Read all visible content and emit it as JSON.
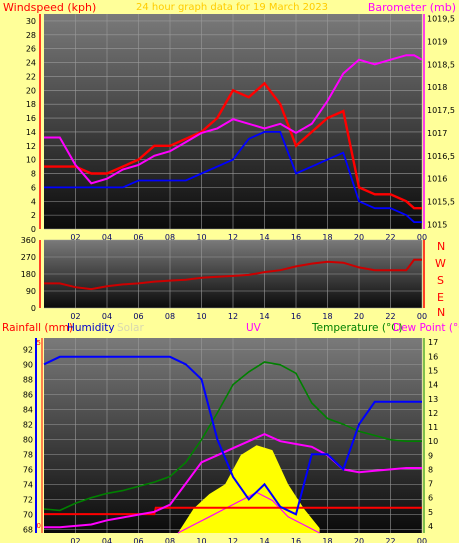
{
  "header": {
    "title": "24 hour graph data for 19 March 2023",
    "windspeed_label": "Windspeed (kph)",
    "barometer_label": "Barometer (mb)"
  },
  "compass": [
    "N",
    "W",
    "S",
    "E",
    "N"
  ],
  "bottom_labels": {
    "rainfall": "Rainfall (mm)",
    "humidity": "Humidity",
    "solar": "Solar",
    "uv": "UV",
    "temperature": "Temperature (°C)",
    "dewpoint": "Dew Point (°C)"
  },
  "colors": {
    "background": "#ffff99",
    "windspeed": "#ff0000",
    "gust": "#ff0000",
    "avg_wind": "#0000ff",
    "barometer": "#ff00ff",
    "direction": "#cc0000",
    "humidity": "#0000ff",
    "temperature": "#008000",
    "dewpoint": "#ff00ff",
    "solar": "#ffff00",
    "uv": "#ff00ff",
    "rain": "#ff0000"
  },
  "chart_data": [
    {
      "type": "line",
      "title": "24 hour graph data for 19 March 2023",
      "xlabel": "",
      "ylabel": "Windspeed (kph)",
      "y2label": "Barometer (mb)",
      "x_ticks": [
        "02",
        "04",
        "06",
        "08",
        "10",
        "12",
        "14",
        "16",
        "18",
        "20",
        "22",
        "00"
      ],
      "x_range_hours": [
        0,
        24
      ],
      "ylim": [
        0,
        31
      ],
      "y_ticks": [
        0,
        2,
        4,
        6,
        8,
        10,
        12,
        14,
        16,
        18,
        20,
        22,
        24,
        26,
        28,
        30
      ],
      "y2lim": [
        1014.9,
        1019.6
      ],
      "y2_ticks": [
        "1015",
        "1015,5",
        "1016",
        "1016,5",
        "1017",
        "1017,5",
        "1018",
        "1018,5",
        "1019",
        "1019,5"
      ],
      "grid": true,
      "series": [
        {
          "axis": "left",
          "x": [
            0,
            1,
            2,
            3,
            4,
            5,
            6,
            7,
            8,
            9,
            10,
            11,
            12,
            13,
            14,
            15,
            16,
            17,
            18,
            19,
            20,
            21,
            22,
            23,
            23.5,
            24
          ],
          "values": [
            9,
            9,
            9,
            8,
            8,
            9,
            10,
            12,
            12,
            13,
            14,
            16,
            20,
            19,
            21,
            18,
            12,
            14,
            16,
            17,
            6,
            5,
            5,
            4,
            3,
            3
          ]
        },
        {
          "axis": "left",
          "x": [
            0,
            1,
            2,
            3,
            4,
            5,
            6,
            7,
            8,
            9,
            10,
            11,
            12,
            13,
            14,
            15,
            16,
            17,
            18,
            19,
            20,
            21,
            22,
            23,
            23.5,
            24
          ],
          "values": [
            6,
            6,
            6,
            6,
            6,
            6,
            7,
            7,
            7,
            7,
            8,
            9,
            10,
            13,
            14,
            14,
            8,
            9,
            10,
            11,
            4,
            3,
            3,
            2,
            1,
            1
          ]
        },
        {
          "axis": "right",
          "x": [
            0,
            1,
            2,
            3,
            4,
            5,
            6,
            7,
            8,
            9,
            10,
            11,
            12,
            13,
            14,
            15,
            16,
            17,
            18,
            19,
            20,
            21,
            22,
            23,
            23.5,
            24
          ],
          "values": [
            1016.9,
            1016.9,
            1016.3,
            1015.9,
            1016.0,
            1016.2,
            1016.3,
            1016.5,
            1016.6,
            1016.8,
            1017.0,
            1017.1,
            1017.3,
            1017.2,
            1017.1,
            1017.2,
            1017.0,
            1017.2,
            1017.7,
            1018.3,
            1018.6,
            1018.5,
            1018.6,
            1018.7,
            1018.7,
            1018.6
          ]
        }
      ]
    },
    {
      "type": "line",
      "xlabel": "",
      "ylabel": "",
      "ylim": [
        0,
        360
      ],
      "y_ticks": [
        0,
        90,
        180,
        270,
        360
      ],
      "x_ticks": [
        "02",
        "04",
        "06",
        "08",
        "10",
        "12",
        "14",
        "16",
        "18",
        "20",
        "22",
        "00"
      ],
      "x_range_hours": [
        0,
        24
      ],
      "grid": true,
      "series": [
        {
          "x": [
            0,
            1,
            2,
            3,
            4,
            5,
            6,
            7,
            8,
            9,
            10,
            11,
            12,
            13,
            14,
            15,
            16,
            17,
            18,
            19,
            20,
            21,
            22,
            23,
            23.5,
            24
          ],
          "values": [
            130,
            130,
            110,
            100,
            115,
            125,
            130,
            140,
            145,
            150,
            160,
            165,
            170,
            175,
            190,
            200,
            220,
            235,
            245,
            240,
            215,
            200,
            200,
            200,
            255,
            255
          ]
        }
      ]
    },
    {
      "type": "line",
      "xlabel": "",
      "ylabel": "Humidity",
      "y2label": "Temperature (°C)",
      "x_ticks": [
        "02",
        "04",
        "06",
        "08",
        "10",
        "12",
        "14",
        "16",
        "18",
        "20",
        "22",
        "00"
      ],
      "x_range_hours": [
        0,
        24
      ],
      "ylim": [
        67.5,
        93.5
      ],
      "y_ticks": [
        68,
        70,
        72,
        74,
        76,
        78,
        80,
        82,
        84,
        86,
        88,
        90,
        92
      ],
      "y2lim": [
        3.5,
        17.3
      ],
      "y2_ticks": [
        4,
        5,
        6,
        7,
        8,
        9,
        10,
        11,
        12,
        13,
        14,
        15,
        16,
        17
      ],
      "rain_axis_ticks": [
        0,
        5
      ],
      "grid": true,
      "series": [
        {
          "x": [
            0,
            1,
            2,
            3,
            4,
            5,
            6,
            7,
            8,
            9,
            10,
            11,
            12,
            13,
            14,
            15,
            16,
            17,
            18,
            19,
            20,
            21,
            22,
            23,
            23.5,
            24
          ],
          "values": [
            90,
            91,
            91,
            91,
            91,
            91,
            91,
            91,
            91,
            90,
            88,
            80,
            75,
            72,
            74,
            71,
            70,
            78,
            78,
            76,
            82,
            85,
            85,
            85,
            85,
            85
          ]
        },
        {
          "x": [
            0,
            1,
            2,
            3,
            4,
            5,
            6,
            7,
            8,
            9,
            10,
            11,
            12,
            13,
            14,
            15,
            16,
            17,
            18,
            19,
            20,
            21,
            22,
            23,
            23.5,
            24
          ],
          "values": [
            5.2,
            5.1,
            5.6,
            6.0,
            6.3,
            6.5,
            6.8,
            7.1,
            7.5,
            8.5,
            10.1,
            12.0,
            14.0,
            14.9,
            15.6,
            15.4,
            14.8,
            12.7,
            11.6,
            11.2,
            10.7,
            10.4,
            10.1,
            10.0,
            10.0,
            10.0
          ]
        },
        {
          "x": [
            0,
            1,
            2,
            3,
            4,
            5,
            6,
            7,
            8,
            9,
            10,
            11,
            12,
            13,
            14,
            15,
            16,
            17,
            18,
            19,
            20,
            21,
            22,
            23,
            23.5,
            24
          ],
          "values": [
            3.9,
            3.9,
            4.0,
            4.1,
            4.4,
            4.6,
            4.8,
            5.0,
            5.5,
            7.0,
            8.5,
            9.0,
            9.5,
            10.0,
            10.5,
            10.0,
            9.8,
            9.6,
            9.0,
            8.0,
            7.8,
            7.9,
            8.0,
            8.1,
            8.1,
            8.1
          ]
        },
        {
          "x": [
            8.5,
            9.5,
            10.5,
            11.5,
            12.5,
            13.5,
            14.5,
            15.5,
            16.5,
            17.5
          ],
          "values": [
            0,
            5,
            8,
            10,
            16,
            18,
            17,
            10,
            5,
            1
          ]
        },
        {
          "x": [
            8.5,
            9.5,
            10.5,
            11.5,
            12.5,
            13.5,
            14.5,
            15.5,
            16.5,
            17.5
          ],
          "values": [
            0,
            0.5,
            1,
            1.5,
            2,
            2.5,
            2,
            1,
            0.5,
            0
          ]
        },
        {
          "x": [
            0,
            7,
            7.1,
            24
          ],
          "values": [
            0,
            0,
            0.2,
            0.2
          ]
        }
      ]
    }
  ]
}
